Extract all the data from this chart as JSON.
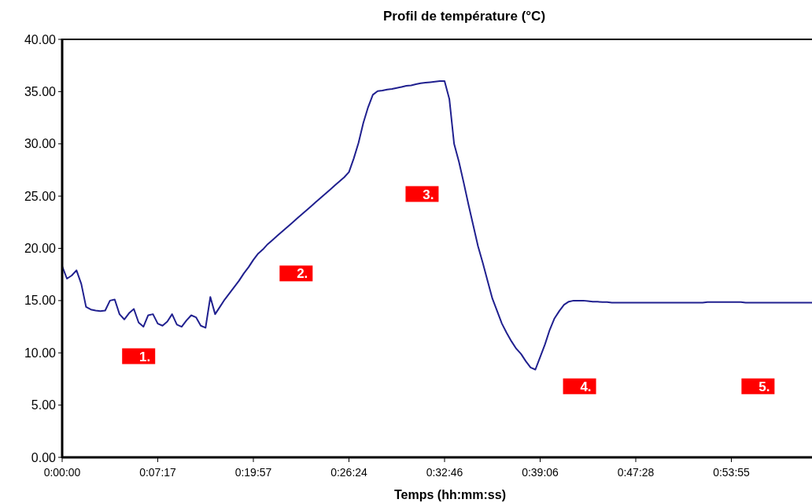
{
  "chart_data": {
    "type": "line",
    "title": "Profil de température (°C)",
    "xlabel": "Temps (hh:mm:ss)",
    "categories": [
      "0:00:00",
      null,
      null,
      null,
      null,
      null,
      null,
      null,
      null,
      null,
      null,
      null,
      null,
      null,
      null,
      null,
      null,
      null,
      null,
      null,
      "0:07:17",
      null,
      null,
      null,
      null,
      null,
      null,
      null,
      null,
      null,
      null,
      null,
      null,
      null,
      null,
      null,
      null,
      null,
      null,
      null,
      "0:19:57",
      null,
      null,
      null,
      null,
      null,
      null,
      null,
      null,
      null,
      null,
      null,
      null,
      null,
      null,
      null,
      null,
      null,
      null,
      null,
      "0:26:24",
      null,
      null,
      null,
      null,
      null,
      null,
      null,
      null,
      null,
      null,
      null,
      null,
      null,
      null,
      null,
      null,
      null,
      null,
      null,
      "0:32:46",
      null,
      null,
      null,
      null,
      null,
      null,
      null,
      null,
      null,
      null,
      null,
      null,
      null,
      null,
      null,
      null,
      null,
      null,
      null,
      "0:39:06",
      null,
      null,
      null,
      null,
      null,
      null,
      null,
      null,
      null,
      null,
      null,
      null,
      null,
      null,
      null,
      null,
      null,
      null,
      null,
      "0:47:28",
      null,
      null,
      null,
      null,
      null,
      null,
      null,
      null,
      null,
      null,
      null,
      null,
      null,
      null,
      null,
      null,
      null,
      null,
      null,
      "0:53:55",
      null,
      null,
      null,
      null,
      null,
      null,
      null,
      null,
      null,
      null,
      null,
      null,
      null,
      null,
      null,
      null,
      null
    ],
    "series": [
      {
        "color": "#20208f",
        "values": [
          18.3,
          17.1,
          17.4,
          17.9,
          16.6,
          14.4,
          14.15,
          14.05,
          14.0,
          14.05,
          15.0,
          15.1,
          13.7,
          13.2,
          13.8,
          14.2,
          12.9,
          12.5,
          13.6,
          13.7,
          12.8,
          12.6,
          13.0,
          13.7,
          12.7,
          12.5,
          13.1,
          13.6,
          13.4,
          12.6,
          12.4,
          15.35,
          13.7,
          14.4,
          15.1,
          15.7,
          16.3,
          16.9,
          17.6,
          18.2,
          18.9,
          19.5,
          19.9,
          20.4,
          20.8,
          21.2,
          21.6,
          22.0,
          22.4,
          22.8,
          23.2,
          23.6,
          24.0,
          24.4,
          24.8,
          25.2,
          25.6,
          26.0,
          26.4,
          26.8,
          27.3,
          28.6,
          30.1,
          32.0,
          33.5,
          34.7,
          35.05,
          35.1,
          35.2,
          35.25,
          35.35,
          35.45,
          35.55,
          35.6,
          35.7,
          35.8,
          35.85,
          35.9,
          35.95,
          36.0,
          36.0,
          34.3,
          30.0,
          28.3,
          26.3,
          24.2,
          22.2,
          20.2,
          18.6,
          16.9,
          15.2,
          14.0,
          12.8,
          11.9,
          11.1,
          10.4,
          9.9,
          9.2,
          8.6,
          8.4,
          9.6,
          10.8,
          12.2,
          13.3,
          14.0,
          14.6,
          14.9,
          15.0,
          15.0,
          15.0,
          14.95,
          14.9,
          14.9,
          14.85,
          14.85,
          14.8,
          14.8,
          14.8,
          14.8,
          14.8,
          14.8,
          14.8,
          14.8,
          14.8,
          14.8,
          14.8,
          14.8,
          14.8,
          14.8,
          14.8,
          14.8,
          14.8,
          14.8,
          14.8,
          14.8,
          14.85,
          14.85,
          14.85,
          14.85,
          14.85,
          14.85,
          14.85,
          14.85,
          14.8,
          14.8,
          14.8,
          14.8,
          14.8,
          14.8,
          14.8,
          14.8,
          14.8,
          14.8,
          14.8,
          14.8,
          14.8,
          14.8,
          14.8
        ]
      }
    ],
    "ylim": [
      0,
      40
    ],
    "yticks": [
      {
        "value": 0,
        "label": "0.00"
      },
      {
        "value": 5,
        "label": "5.00"
      },
      {
        "value": 10,
        "label": "10.00"
      },
      {
        "value": 15,
        "label": "15.00"
      },
      {
        "value": 20,
        "label": "20.00"
      },
      {
        "value": 25,
        "label": "25.00"
      },
      {
        "value": 30,
        "label": "30.00"
      },
      {
        "value": 35,
        "label": "35.00"
      },
      {
        "value": 40,
        "label": "40.00"
      }
    ],
    "annotations": [
      "1.",
      "2.",
      "3.",
      "4.",
      "5."
    ]
  }
}
